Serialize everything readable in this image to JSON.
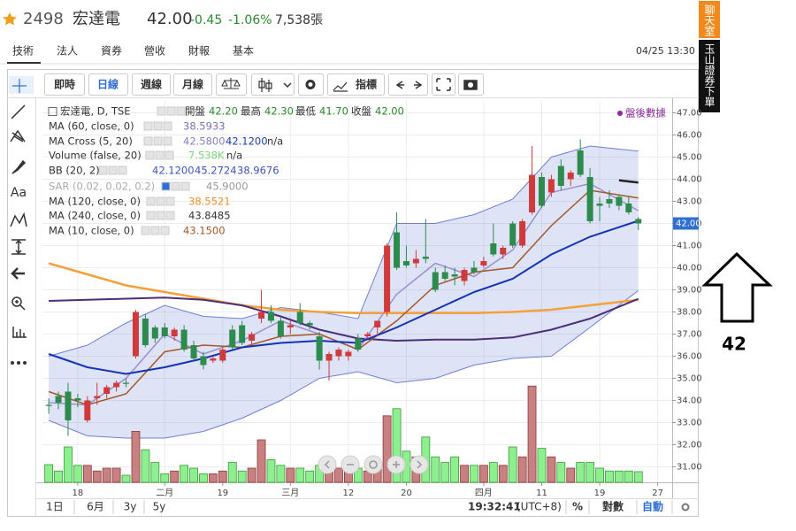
{
  "header": {
    "code": "2498",
    "name": "宏達電",
    "price": "42.00",
    "change": "-0.45",
    "change_pct": "-1.06%",
    "volume": "7,538張"
  },
  "tabs": [
    "技術",
    "法人",
    "資券",
    "營收",
    "財報",
    "基本"
  ],
  "datetime": "04/25 13:30",
  "toolbar": [
    "即時",
    "日線",
    "週線",
    "月線",
    "指標"
  ],
  "side_buttons": [
    "聊天室",
    "玉山證券下單"
  ],
  "annotation": "42",
  "drawing_tool_label": "Aa",
  "bottom_bar": {
    "ranges": [
      "1日",
      "6月",
      "3y",
      "5y"
    ],
    "time": "19:32:41",
    "timezone": "(UTC+8)",
    "percent": "%",
    "log": "對數",
    "auto": "自動"
  },
  "chart_data": {
    "type": "candlestick",
    "after_hours": "盤後數據",
    "legend": {
      "rows": [
        {
          "label": "宏達電, D, TSE",
          "fields": [
            {
              "name": "開盤",
              "value": "42.20"
            },
            {
              "name": "最高",
              "value": "42.30"
            },
            {
              "name": "最低",
              "value": "41.70"
            },
            {
              "name": "收盤",
              "value": "42.00"
            }
          ]
        },
        {
          "label": "MA (60, close, 0)",
          "values": [
            "38.5933"
          ]
        },
        {
          "label": "MA Cross (5, 20)",
          "values": [
            "42.5800",
            "42.1200",
            "n/a"
          ]
        },
        {
          "label": "Volume (false, 20)",
          "values": [
            "7.538K",
            "n/a"
          ]
        },
        {
          "label": "BB (20, 2)",
          "values": [
            "42.1200",
            "45.2724",
            "38.9676"
          ]
        },
        {
          "label": "SAR (0.02, 0.02, 0.2)",
          "values": [
            "45.9000"
          ]
        },
        {
          "label": "MA (120, close, 0)",
          "values": [
            "38.5521"
          ]
        },
        {
          "label": "MA (240, close, 0)",
          "values": [
            "43.8485"
          ]
        },
        {
          "label": "MA (10, close, 0)",
          "values": [
            "43.1500"
          ]
        }
      ]
    },
    "xlim": [
      -0.65,
      64.5
    ],
    "xticks": [
      {
        "value": 3,
        "label": "18"
      },
      {
        "value": 12,
        "label": "二月"
      },
      {
        "value": 18,
        "label": "19"
      },
      {
        "value": 25,
        "label": "三月"
      },
      {
        "value": 31,
        "label": "12"
      },
      {
        "value": 37,
        "label": "20"
      },
      {
        "value": 45,
        "label": "四月"
      },
      {
        "value": 51,
        "label": "11"
      },
      {
        "value": 57,
        "label": "19"
      },
      {
        "value": 63,
        "label": "27"
      }
    ],
    "ylim": [
      30.3,
      47.5
    ],
    "yticks": [
      {
        "value": 31,
        "label": "31.00"
      },
      {
        "value": 32,
        "label": "32.00"
      },
      {
        "value": 33,
        "label": "33.00"
      },
      {
        "value": 34,
        "label": "34.00"
      },
      {
        "value": 35,
        "label": "35.00"
      },
      {
        "value": 36,
        "label": "36.00"
      },
      {
        "value": 37,
        "label": "37.00"
      },
      {
        "value": 38,
        "label": "38.00"
      },
      {
        "value": 39,
        "label": "39.00"
      },
      {
        "value": 40,
        "label": "40.00"
      },
      {
        "value": 41,
        "label": "41.00"
      },
      {
        "value": 42,
        "label": "42.00"
      },
      {
        "value": 43,
        "label": "43.00"
      },
      {
        "value": 44,
        "label": "44.00"
      },
      {
        "value": 45,
        "label": "45.00"
      },
      {
        "value": 46,
        "label": "46.00"
      },
      {
        "value": 47,
        "label": "47.00"
      }
    ],
    "grid": true,
    "current_price": {
      "value": 42,
      "label": "42.00"
    },
    "up_color": "#cf3b3b",
    "down_color": "#2e8b4e",
    "open": [
      33.8,
      34.2,
      34.4,
      34.1,
      33.1,
      34.1,
      34.3,
      34.6,
      34.8,
      36.0,
      37.7,
      37.3,
      37.3,
      36.9,
      37.2,
      36.5,
      36.0,
      35.8,
      35.8,
      37.2,
      37.4,
      36.7,
      37.7,
      38.0,
      37.6,
      37.3,
      38.0,
      37.5,
      36.9,
      35.8,
      36.0,
      36.0,
      36.8,
      36.9,
      37.3,
      38.0,
      41.6,
      40.3,
      40.2,
      40.5,
      39.8,
      39.8,
      39.7,
      39.4,
      40.0,
      40.1,
      41.1,
      40.6,
      42.0,
      41.0,
      42.5,
      44.1,
      43.4,
      44.6,
      44.0,
      45.3,
      44.1,
      42.9,
      43.1,
      43.2,
      42.9,
      42.2
    ],
    "high": [
      34.1,
      34.4,
      34.8,
      34.3,
      34.2,
      34.8,
      34.7,
      34.9,
      35.0,
      38.1,
      37.9,
      37.4,
      37.5,
      37.3,
      37.4,
      36.7,
      36.2,
      36.0,
      36.4,
      37.4,
      37.6,
      37.1,
      39.0,
      38.3,
      37.8,
      37.6,
      38.4,
      37.6,
      37.1,
      36.2,
      36.4,
      36.3,
      37.0,
      37.1,
      37.6,
      41.1,
      42.5,
      41.0,
      40.8,
      42.2,
      40.0,
      40.1,
      40.0,
      40.0,
      40.3,
      40.5,
      42.0,
      41.0,
      42.1,
      42.2,
      45.5,
      44.3,
      44.2,
      44.9,
      44.4,
      45.8,
      44.5,
      43.2,
      43.5,
      43.3,
      43.2,
      42.3
    ],
    "low": [
      33.4,
      33.6,
      32.4,
      33.7,
      33.0,
      33.8,
      34.1,
      34.4,
      34.6,
      35.9,
      36.4,
      36.6,
      36.8,
      36.7,
      36.2,
      35.8,
      35.4,
      35.7,
      35.7,
      36.3,
      36.5,
      36.5,
      37.5,
      37.5,
      36.8,
      37.0,
      37.4,
      37.2,
      35.4,
      34.9,
      35.8,
      35.8,
      36.2,
      36.8,
      36.9,
      37.8,
      39.9,
      40.0,
      40.0,
      40.2,
      38.9,
      39.4,
      39.2,
      39.2,
      39.7,
      40.0,
      40.5,
      40.4,
      40.9,
      40.9,
      42.4,
      42.7,
      43.2,
      43.5,
      43.7,
      44.1,
      42.0,
      42.1,
      42.7,
      42.6,
      42.4,
      41.7
    ],
    "close": [
      33.75,
      33.9,
      33.1,
      34.0,
      34.0,
      34.2,
      34.6,
      34.8,
      34.75,
      38.0,
      36.5,
      36.8,
      36.9,
      37.2,
      36.3,
      35.9,
      35.6,
      35.9,
      36.3,
      36.4,
      36.6,
      37.0,
      38.0,
      37.6,
      36.9,
      37.4,
      37.5,
      37.4,
      35.8,
      36.1,
      36.3,
      36.2,
      36.3,
      37.0,
      37.6,
      41.0,
      40.0,
      40.1,
      40.4,
      40.4,
      39.0,
      39.5,
      39.6,
      39.9,
      39.8,
      40.3,
      40.6,
      40.9,
      41.0,
      42.1,
      44.2,
      42.8,
      44.0,
      43.7,
      44.3,
      44.2,
      42.1,
      42.8,
      42.9,
      42.8,
      42.5,
      42.0
    ],
    "volume": {
      "vlim": [
        0,
        70
      ],
      "up_color": "#c98080",
      "down_color": "#8def8d",
      "values": [
        12.5,
        8,
        25,
        12,
        12,
        8,
        10,
        10,
        5,
        36,
        23,
        14,
        6,
        8,
        12,
        10,
        6,
        6,
        8,
        14,
        8,
        10,
        30,
        16,
        12,
        10,
        10,
        8,
        12,
        14,
        10,
        8,
        10,
        8,
        10,
        47,
        52,
        22,
        18,
        32,
        18,
        14,
        18,
        12,
        12,
        12,
        14,
        12,
        25,
        18,
        68,
        24,
        18,
        14,
        10,
        14,
        14,
        10,
        8,
        8,
        8,
        7.538
      ]
    },
    "band": {
      "color": "#6f7fd4",
      "x": [
        0,
        4,
        8,
        12,
        16,
        20,
        24,
        28,
        32,
        36,
        40,
        44,
        48,
        52,
        56,
        61
      ],
      "upper": [
        36.0,
        36.5,
        37.5,
        38.3,
        37.8,
        37.7,
        38.2,
        38.0,
        37.7,
        42.0,
        42.0,
        42.4,
        43.1,
        45.0,
        45.5,
        45.27
      ],
      "lower": [
        33.1,
        32.4,
        32.3,
        32.3,
        32.6,
        33.2,
        34.0,
        35.0,
        35.3,
        34.8,
        35.0,
        35.6,
        35.9,
        36.0,
        37.3,
        38.97
      ]
    },
    "lines": [
      {
        "color": "#f5a03a",
        "width": 2.5,
        "x": [
          0,
          4,
          8,
          12,
          16,
          20,
          24,
          28,
          32,
          36,
          40,
          44,
          48,
          52,
          56,
          61
        ],
        "values": [
          40.2,
          39.7,
          39.2,
          38.9,
          38.6,
          38.3,
          38.1,
          38.0,
          37.95,
          37.95,
          37.95,
          37.95,
          38.0,
          38.1,
          38.3,
          38.55
        ]
      },
      {
        "color": "#4b2f7a",
        "width": 2,
        "x": [
          0,
          4,
          8,
          12,
          16,
          20,
          24,
          28,
          32,
          36,
          40,
          44,
          48,
          52,
          56,
          61
        ],
        "values": [
          38.5,
          38.55,
          38.6,
          38.65,
          38.55,
          38.3,
          37.8,
          37.2,
          36.8,
          36.7,
          36.75,
          36.75,
          36.85,
          37.2,
          37.7,
          38.59
        ]
      },
      {
        "color": "#9a8fd0",
        "width": 1.5,
        "x": [
          0,
          4,
          8,
          12,
          16,
          20,
          24,
          28,
          32,
          36,
          40,
          44,
          48,
          52,
          56,
          61
        ],
        "values": [
          33.9,
          33.8,
          35.0,
          37.0,
          36.1,
          36.7,
          37.6,
          37.0,
          36.3,
          38.8,
          40.2,
          39.6,
          40.8,
          43.4,
          43.8,
          42.58
        ]
      },
      {
        "color": "#a3582a",
        "width": 1.5,
        "x": [
          0,
          4,
          8,
          12,
          16,
          20,
          24,
          28,
          32,
          36,
          40,
          44,
          48,
          52,
          56,
          61
        ],
        "values": [
          34.4,
          33.8,
          34.3,
          36.2,
          36.5,
          36.4,
          36.9,
          37.0,
          36.3,
          37.6,
          39.2,
          39.8,
          40.0,
          41.9,
          43.5,
          43.15
        ]
      },
      {
        "color": "#1433b5",
        "width": 2,
        "x": [
          0,
          4,
          8,
          12,
          16,
          20,
          24,
          28,
          32,
          36,
          40,
          44,
          48,
          52,
          56,
          61
        ],
        "values": [
          36.1,
          35.5,
          35.2,
          35.5,
          35.9,
          36.4,
          36.6,
          36.7,
          36.6,
          37.3,
          38.1,
          38.9,
          39.5,
          40.6,
          41.4,
          42.12
        ]
      },
      {
        "color": "#222222",
        "width": 2.5,
        "x": [
          59,
          60,
          61
        ],
        "values": [
          43.95,
          43.9,
          43.85
        ]
      }
    ]
  }
}
